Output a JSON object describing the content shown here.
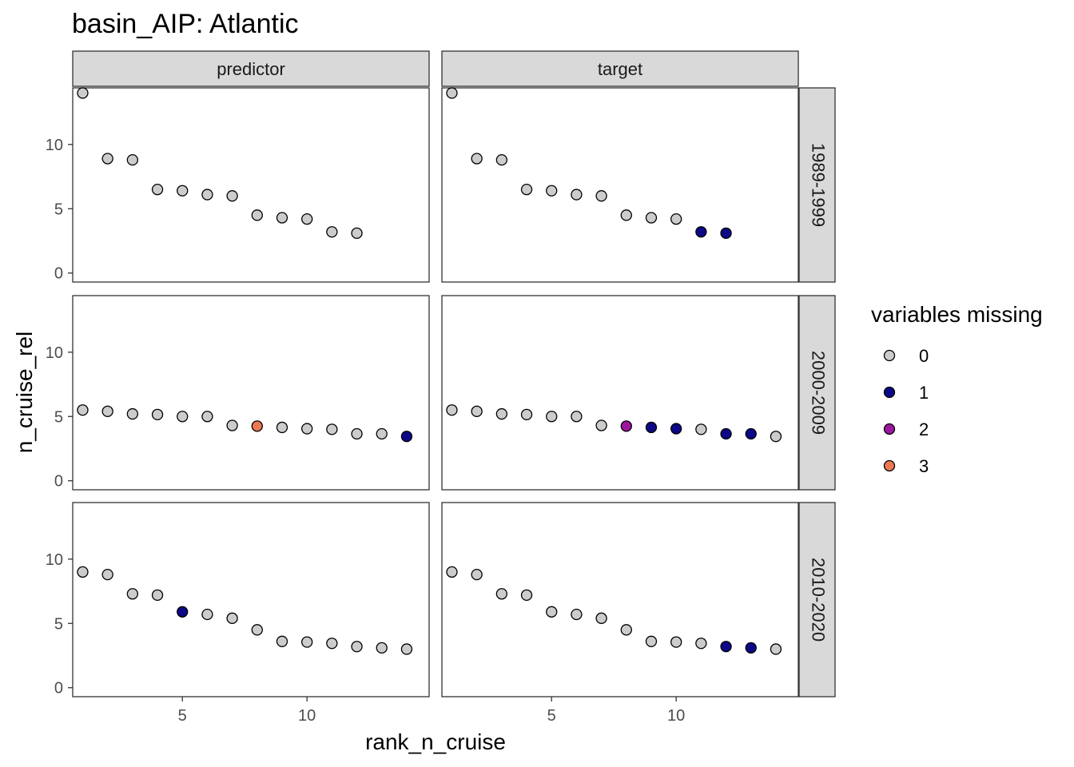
{
  "chart_data": {
    "type": "scatter",
    "title": "basin_AIP: Atlantic",
    "xlabel": "rank_n_cruise",
    "ylabel": "n_cruise_rel",
    "xlim": [
      0.6,
      14.9
    ],
    "ylim": [
      -0.7,
      14.4
    ],
    "x_ticks": [
      5,
      10
    ],
    "y_ticks": [
      0,
      5,
      10
    ],
    "grid": false,
    "facet_columns": [
      "predictor",
      "target"
    ],
    "facet_rows": [
      "1989-1999",
      "2000-2009",
      "2010-2020"
    ],
    "legend": {
      "title": "variables missing",
      "position": "right",
      "entries": [
        {
          "label": "0",
          "color": "#cccccc"
        },
        {
          "label": "1",
          "color": "#0d0887"
        },
        {
          "label": "2",
          "color": "#9c179e"
        },
        {
          "label": "3",
          "color": "#ed7953"
        }
      ]
    },
    "panels": [
      {
        "column": "predictor",
        "row": "1989-1999",
        "x": [
          1,
          2,
          3,
          4,
          5,
          6,
          7,
          8,
          9,
          10,
          11,
          12
        ],
        "y": [
          14.0,
          8.9,
          8.8,
          6.5,
          6.4,
          6.1,
          6.0,
          4.5,
          4.3,
          4.2,
          3.2,
          3.1
        ],
        "missing": [
          0,
          0,
          0,
          0,
          0,
          0,
          0,
          0,
          0,
          0,
          0,
          0
        ]
      },
      {
        "column": "target",
        "row": "1989-1999",
        "x": [
          1,
          2,
          3,
          4,
          5,
          6,
          7,
          8,
          9,
          10,
          11,
          12
        ],
        "y": [
          14.0,
          8.9,
          8.8,
          6.5,
          6.4,
          6.1,
          6.0,
          4.5,
          4.3,
          4.2,
          3.2,
          3.1
        ],
        "missing": [
          0,
          0,
          0,
          0,
          0,
          0,
          0,
          0,
          0,
          0,
          1,
          1
        ]
      },
      {
        "column": "predictor",
        "row": "2000-2009",
        "x": [
          1,
          2,
          3,
          4,
          5,
          6,
          7,
          8,
          9,
          10,
          11,
          12,
          13,
          14
        ],
        "y": [
          5.5,
          5.4,
          5.2,
          5.15,
          5.0,
          5.0,
          4.3,
          4.25,
          4.15,
          4.05,
          4.0,
          3.65,
          3.65,
          3.45
        ],
        "missing": [
          0,
          0,
          0,
          0,
          0,
          0,
          0,
          3,
          0,
          0,
          0,
          0,
          0,
          1
        ]
      },
      {
        "column": "target",
        "row": "2000-2009",
        "x": [
          1,
          2,
          3,
          4,
          5,
          6,
          7,
          8,
          9,
          10,
          11,
          12,
          13,
          14
        ],
        "y": [
          5.5,
          5.4,
          5.2,
          5.15,
          5.0,
          5.0,
          4.3,
          4.25,
          4.15,
          4.05,
          4.0,
          3.65,
          3.65,
          3.45
        ],
        "missing": [
          0,
          0,
          0,
          0,
          0,
          0,
          0,
          2,
          1,
          1,
          0,
          1,
          1,
          0
        ]
      },
      {
        "column": "predictor",
        "row": "2010-2020",
        "x": [
          1,
          2,
          3,
          4,
          5,
          6,
          7,
          8,
          9,
          10,
          11,
          12,
          13,
          14
        ],
        "y": [
          9.0,
          8.8,
          7.3,
          7.2,
          5.9,
          5.7,
          5.4,
          4.5,
          3.6,
          3.55,
          3.45,
          3.2,
          3.1,
          3.0
        ],
        "missing": [
          0,
          0,
          0,
          0,
          1,
          0,
          0,
          0,
          0,
          0,
          0,
          0,
          0,
          0
        ]
      },
      {
        "column": "target",
        "row": "2010-2020",
        "x": [
          1,
          2,
          3,
          4,
          5,
          6,
          7,
          8,
          9,
          10,
          11,
          12,
          13,
          14
        ],
        "y": [
          9.0,
          8.8,
          7.3,
          7.2,
          5.9,
          5.7,
          5.4,
          4.5,
          3.6,
          3.55,
          3.45,
          3.2,
          3.1,
          3.0
        ],
        "missing": [
          0,
          0,
          0,
          0,
          0,
          0,
          0,
          0,
          0,
          0,
          0,
          1,
          1,
          0
        ]
      }
    ]
  }
}
